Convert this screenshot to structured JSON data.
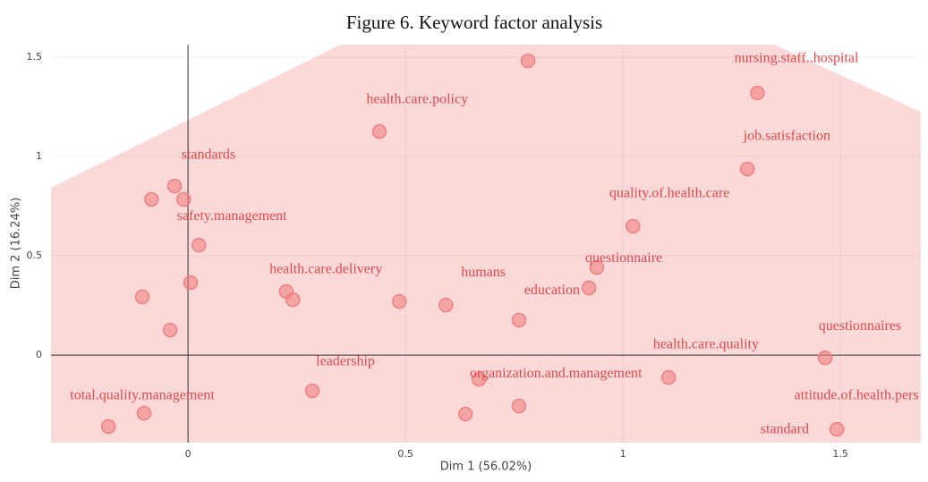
{
  "chart_data": {
    "type": "scatter",
    "title": "Figure 6. Keyword factor analysis",
    "x_label": "Dim 1 (56.02%)",
    "y_label": "Dim 2 (16.24%)",
    "xlim": [
      -0.315,
      1.685
    ],
    "ylim": [
      -0.441,
      1.563
    ],
    "xticks": [
      0,
      0.5,
      1,
      1.5
    ],
    "yticks": [
      0,
      0.5,
      1,
      1.5
    ],
    "grid": true,
    "color": "#f08080",
    "x": [
      0.782,
      1.309,
      0.44,
      1.286,
      -0.031,
      -0.084,
      -0.01,
      1.023,
      0.025,
      0.94,
      0.006,
      -0.105,
      0.226,
      0.241,
      0.486,
      0.593,
      0.922,
      0.761,
      -0.041,
      1.465,
      1.105,
      0.669,
      0.286,
      -0.101,
      0.761,
      0.638,
      -0.183,
      1.492
    ],
    "values": [
      1.482,
      1.32,
      1.126,
      0.937,
      0.851,
      0.784,
      0.784,
      0.649,
      0.554,
      0.441,
      0.365,
      0.293,
      0.32,
      0.279,
      0.27,
      0.252,
      0.338,
      0.176,
      0.126,
      -0.014,
      -0.113,
      -0.122,
      -0.18,
      -0.293,
      -0.257,
      -0.297,
      -0.36,
      -0.374
    ],
    "annotations": [
      {
        "text": "nursing.staff..hospital",
        "x": 1.399,
        "y": 1.491
      },
      {
        "text": "health.care.policy",
        "x": 0.527,
        "y": 1.284
      },
      {
        "text": "job.satisfaction",
        "x": 1.377,
        "y": 1.099
      },
      {
        "text": "standards",
        "x": 0.047,
        "y": 1.005
      },
      {
        "text": "quality.of.health.care",
        "x": 1.107,
        "y": 0.811
      },
      {
        "text": "safety.management",
        "x": 0.101,
        "y": 0.698
      },
      {
        "text": "questionnaire",
        "x": 1.002,
        "y": 0.486
      },
      {
        "text": "health.care.delivery",
        "x": 0.317,
        "y": 0.428
      },
      {
        "text": "humans",
        "x": 0.679,
        "y": 0.414
      },
      {
        "text": "education",
        "x": 0.837,
        "y": 0.324
      },
      {
        "text": "questionnaires",
        "x": 1.545,
        "y": 0.144
      },
      {
        "text": "health.care.quality",
        "x": 1.191,
        "y": 0.05
      },
      {
        "text": "leadership",
        "x": 0.362,
        "y": -0.036
      },
      {
        "text": "organization.and.management",
        "x": 0.846,
        "y": -0.095
      },
      {
        "text": "total.quality.management",
        "x": -0.105,
        "y": -0.207
      },
      {
        "text": "attitude.of.health.pers",
        "x": 1.537,
        "y": -0.207
      },
      {
        "text": "standard",
        "x": 1.372,
        "y": -0.378
      }
    ]
  }
}
